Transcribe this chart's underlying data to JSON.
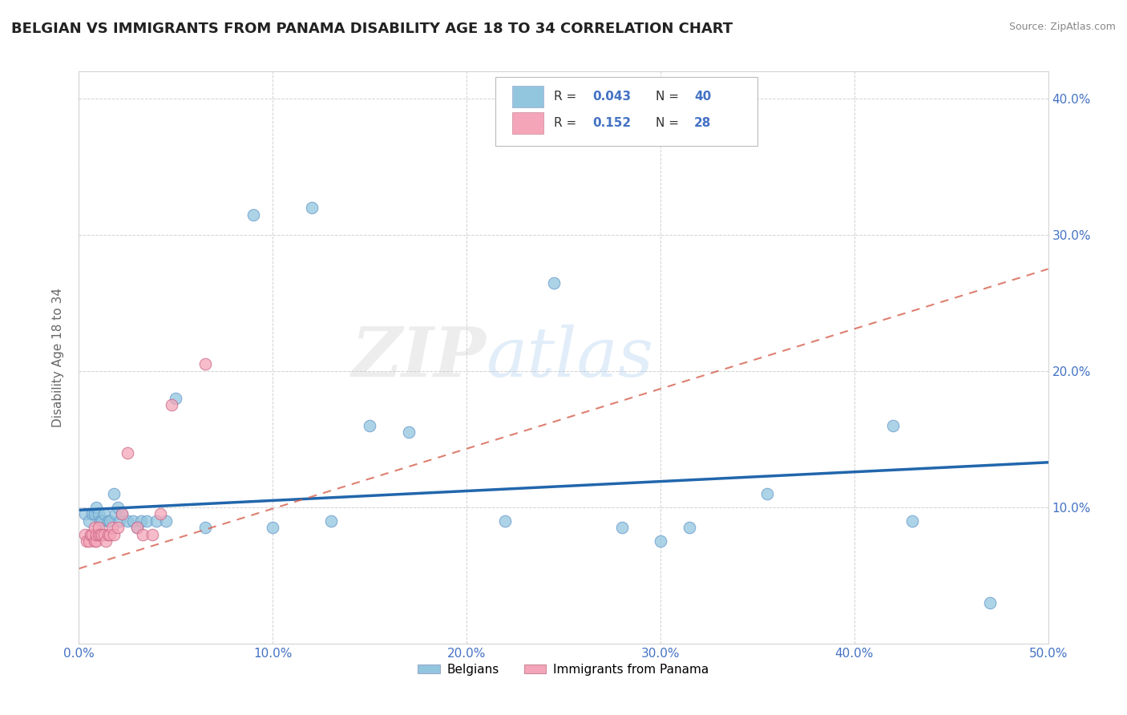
{
  "title": "BELGIAN VS IMMIGRANTS FROM PANAMA DISABILITY AGE 18 TO 34 CORRELATION CHART",
  "source": "Source: ZipAtlas.com",
  "ylabel": "Disability Age 18 to 34",
  "xlabel": "",
  "xlim": [
    0.0,
    0.5
  ],
  "ylim": [
    0.0,
    0.42
  ],
  "xticks": [
    0.0,
    0.1,
    0.2,
    0.3,
    0.4,
    0.5
  ],
  "yticks": [
    0.1,
    0.2,
    0.3,
    0.4
  ],
  "xticklabels": [
    "0.0%",
    "10.0%",
    "20.0%",
    "30.0%",
    "40.0%",
    "50.0%"
  ],
  "yticklabels": [
    "10.0%",
    "20.0%",
    "30.0%",
    "40.0%"
  ],
  "legend_items": [
    "Belgians",
    "Immigrants from Panama"
  ],
  "blue_color": "#92c5de",
  "pink_color": "#f4a6b8",
  "trend_blue": "#2166ac",
  "trend_pink": "#d6604d",
  "R_blue": 0.043,
  "N_blue": 40,
  "R_pink": 0.152,
  "N_pink": 28,
  "blue_scatter_x": [
    0.003,
    0.005,
    0.007,
    0.008,
    0.009,
    0.01,
    0.011,
    0.012,
    0.013,
    0.015,
    0.016,
    0.018,
    0.019,
    0.02,
    0.021,
    0.022,
    0.025,
    0.028,
    0.03,
    0.032,
    0.035,
    0.04,
    0.045,
    0.05,
    0.065,
    0.09,
    0.1,
    0.12,
    0.13,
    0.15,
    0.17,
    0.22,
    0.245,
    0.28,
    0.3,
    0.315,
    0.355,
    0.42,
    0.43,
    0.47
  ],
  "blue_scatter_y": [
    0.095,
    0.09,
    0.095,
    0.095,
    0.1,
    0.095,
    0.09,
    0.09,
    0.095,
    0.09,
    0.09,
    0.11,
    0.095,
    0.1,
    0.09,
    0.095,
    0.09,
    0.09,
    0.085,
    0.09,
    0.09,
    0.09,
    0.09,
    0.18,
    0.085,
    0.315,
    0.085,
    0.32,
    0.09,
    0.16,
    0.155,
    0.09,
    0.265,
    0.085,
    0.075,
    0.085,
    0.11,
    0.16,
    0.09,
    0.03
  ],
  "pink_scatter_x": [
    0.003,
    0.004,
    0.005,
    0.006,
    0.007,
    0.008,
    0.008,
    0.009,
    0.009,
    0.01,
    0.01,
    0.011,
    0.012,
    0.013,
    0.014,
    0.015,
    0.016,
    0.017,
    0.018,
    0.02,
    0.022,
    0.025,
    0.03,
    0.033,
    0.038,
    0.042,
    0.048,
    0.065
  ],
  "pink_scatter_y": [
    0.08,
    0.075,
    0.075,
    0.08,
    0.08,
    0.075,
    0.085,
    0.075,
    0.08,
    0.08,
    0.085,
    0.08,
    0.08,
    0.08,
    0.075,
    0.08,
    0.08,
    0.085,
    0.08,
    0.085,
    0.095,
    0.14,
    0.085,
    0.08,
    0.08,
    0.095,
    0.175,
    0.205
  ],
  "watermark_zip": "ZIP",
  "watermark_atlas": "atlas",
  "marker_size": 110,
  "grid_color": "#cccccc",
  "bg_color": "#ffffff",
  "title_fontsize": 13,
  "tick_color": "#4472c4",
  "axis_label_color": "#666666",
  "blue_trend_y0": 0.098,
  "blue_trend_y1": 0.133,
  "pink_trend_y0": 0.055,
  "pink_trend_y1": 0.275
}
